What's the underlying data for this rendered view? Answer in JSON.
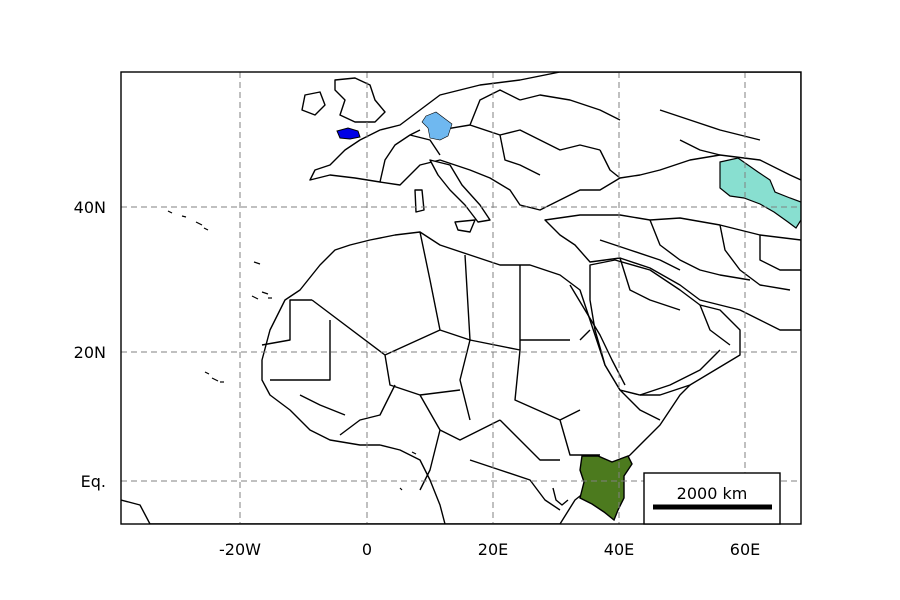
{
  "map": {
    "x_ticks": [
      {
        "label": "-20W",
        "lon": -20
      },
      {
        "label": "0",
        "lon": 0
      },
      {
        "label": "20E",
        "lon": 20
      },
      {
        "label": "40E",
        "lon": 40
      },
      {
        "label": "60E",
        "lon": 60
      }
    ],
    "y_ticks": [
      {
        "label": "Eq.",
        "lat": 0
      },
      {
        "label": "20N",
        "lat": 20
      },
      {
        "label": "40N",
        "lat": 40
      }
    ],
    "extent": {
      "lon_min": -39,
      "lon_max": 69,
      "lat_min": -6,
      "lat_max": 59
    },
    "grid": true,
    "scale_bar": {
      "label": "2000 km",
      "placement": "bottom-right"
    },
    "highlighted_regions": [
      {
        "name": "Brittany",
        "color": "#0000e6"
      },
      {
        "name": "Bavaria",
        "color": "#6fb8f0"
      },
      {
        "name": "Uzbekistan",
        "color": "#88dfd0"
      },
      {
        "name": "Kenya",
        "color": "#4c7a1e"
      }
    ]
  }
}
